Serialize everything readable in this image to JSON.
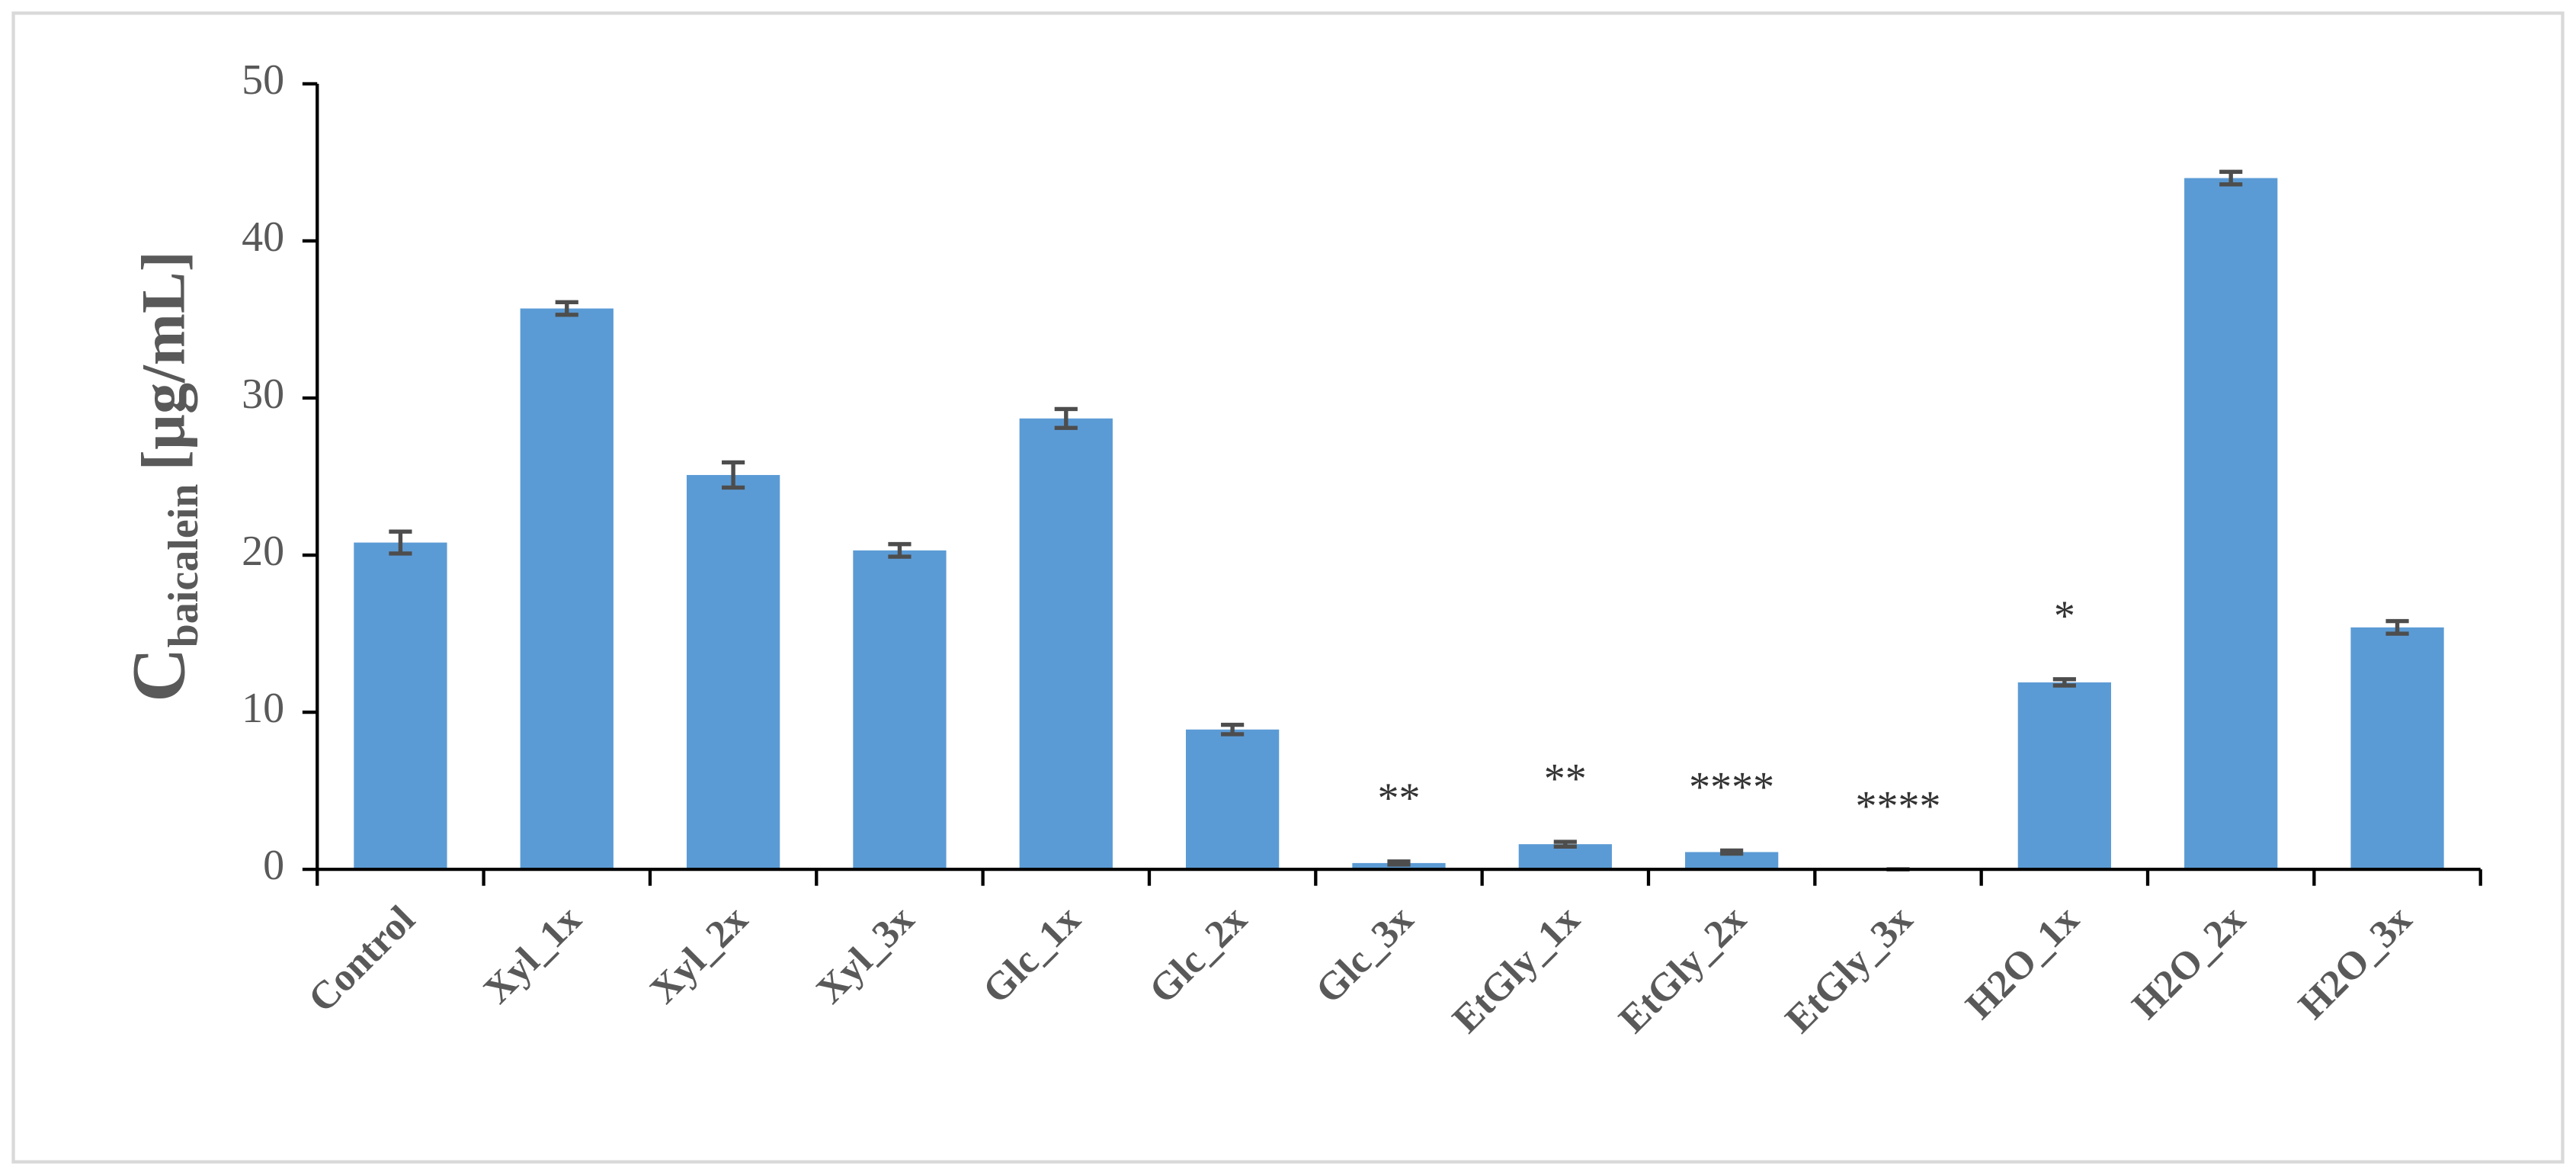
{
  "chart_data": {
    "type": "bar",
    "ylabel": "C",
    "ylabel_subscript": "baicalein",
    "ylabel_unit": "[µg/mL]",
    "categories": [
      "Control",
      "Xyl_1x",
      "Xyl_2x",
      "Xyl_3x",
      "Glc_1x",
      "Glc_2x",
      "Glc_3x",
      "EtGly_1x",
      "EtGly_2x",
      "EtGly_3x",
      "H2O_1x",
      "H2O_2x",
      "H2O_3x"
    ],
    "values": [
      20.8,
      35.7,
      25.1,
      20.3,
      28.7,
      8.9,
      0.4,
      1.6,
      1.1,
      0,
      11.9,
      44.0,
      15.4
    ],
    "errors": [
      0.7,
      0.4,
      0.8,
      0.4,
      0.6,
      0.3,
      0.1,
      0.15,
      0.1,
      0,
      0.2,
      0.4,
      0.4
    ],
    "significance": [
      null,
      null,
      null,
      null,
      null,
      null,
      "**",
      "**",
      "****",
      "****",
      "*",
      null,
      null
    ],
    "color": "#5b9bd5",
    "error_color": "#4d4d4d",
    "ylim": [
      0,
      50
    ],
    "yticks": [
      0,
      10,
      20,
      30,
      40,
      50
    ],
    "grid": false
  }
}
